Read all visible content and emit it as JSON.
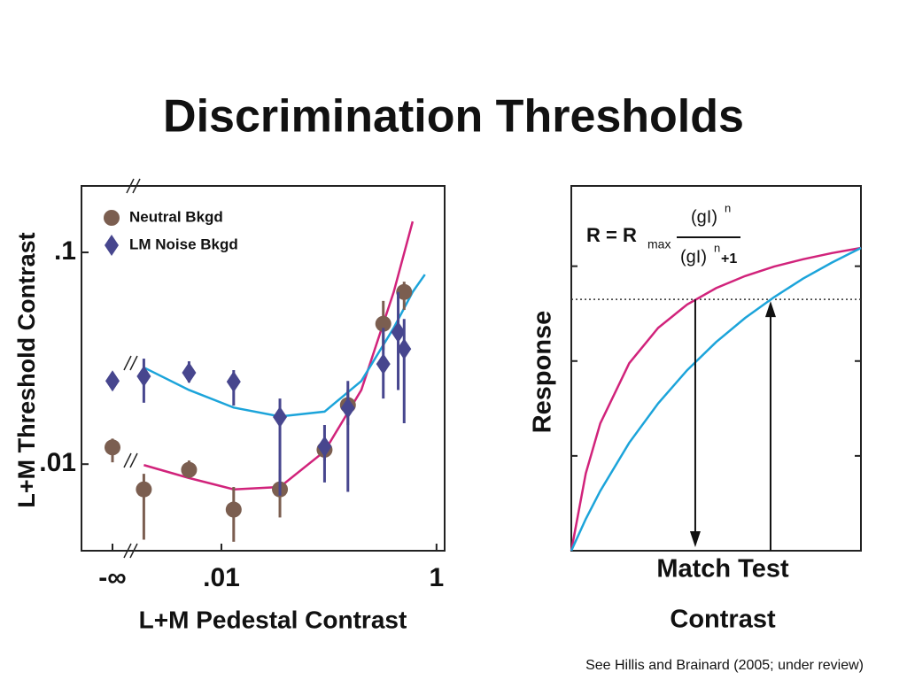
{
  "title": "Discrimination Thresholds",
  "footnote": "See Hillis and Brainard (2005; under review)",
  "chart_data": [
    {
      "type": "scatter",
      "xlabel": "L+M Pedestal Contrast",
      "ylabel": "L+M Threshold Contrast",
      "xscale": "log",
      "yscale": "log",
      "xlim": [
        0.0005,
        1.19
      ],
      "ylim": [
        0.0039,
        0.206
      ],
      "xticks": [
        {
          "value": null,
          "label": "-∞"
        },
        {
          "value": 0.01,
          "label": ".01"
        },
        1
      ],
      "yticks": [
        {
          "value": 0.1,
          "label": ".1"
        },
        {
          "value": 0.01,
          "label": ".01"
        }
      ],
      "legend": "upper left",
      "series": [
        {
          "name": "Neutral Bkgd",
          "color": "#7b5e50",
          "marker": "circle",
          "x": [
            null,
            0.0019,
            0.005,
            0.013,
            0.035,
            0.091,
            0.15,
            0.32,
            0.5
          ],
          "values": [
            0.012,
            0.0076,
            0.0094,
            0.0061,
            0.0076,
            0.0117,
            0.019,
            0.046,
            0.065
          ],
          "low": [
            0.0102,
            0.0044,
            0.0086,
            0.0043,
            0.0056,
            0.0104,
            0.0153,
            0.0346,
            0.0535
          ],
          "high": [
            0.0132,
            0.009,
            0.0104,
            0.0078,
            0.0094,
            0.0132,
            0.0224,
            0.059,
            0.0727
          ]
        },
        {
          "name": "LM Noise Bkgd",
          "color": "#47468e",
          "marker": "diamond",
          "x": [
            null,
            0.0019,
            0.005,
            0.013,
            0.035,
            0.091,
            0.15,
            0.32,
            0.44,
            0.5
          ],
          "values": [
            0.0247,
            0.026,
            0.027,
            0.0245,
            0.0167,
            0.0121,
            0.0184,
            0.0297,
            0.042,
            0.035
          ],
          "low": [
            0.0224,
            0.0195,
            0.0243,
            0.0189,
            0.0071,
            0.0082,
            0.0074,
            0.0204,
            0.0224,
            0.0156
          ],
          "high": [
            0.0272,
            0.0315,
            0.0306,
            0.0278,
            0.0204,
            0.0153,
            0.0247,
            0.044,
            0.065,
            0.0485
          ]
        }
      ],
      "fits": [
        {
          "color": "#d1237b",
          "x": [
            0.0019,
            0.005,
            0.013,
            0.035,
            0.091,
            0.2,
            0.4,
            0.6
          ],
          "values": [
            0.0099,
            0.0086,
            0.0076,
            0.0078,
            0.0115,
            0.0224,
            0.065,
            0.14
          ]
        },
        {
          "color": "#1ca4da",
          "x": [
            0.0019,
            0.005,
            0.013,
            0.035,
            0.091,
            0.2,
            0.4,
            0.6,
            0.78
          ],
          "values": [
            0.0286,
            0.0224,
            0.0185,
            0.0168,
            0.0177,
            0.0247,
            0.044,
            0.065,
            0.0786
          ]
        }
      ]
    },
    {
      "type": "line",
      "ylabel": "Response",
      "xlabel": [
        "Match Test",
        "Contrast"
      ],
      "xlim": [
        0,
        1
      ],
      "ylim": [
        0,
        1
      ],
      "yticks": [
        0.26,
        0.52,
        0.78
      ],
      "x": [
        0,
        0.05,
        0.1,
        0.2,
        0.3,
        0.4,
        0.5,
        0.6,
        0.7,
        0.8,
        0.9,
        1
      ],
      "series": [
        {
          "color": "#d1237b",
          "values": [
            0,
            0.212,
            0.349,
            0.514,
            0.611,
            0.675,
            0.72,
            0.753,
            0.779,
            0.799,
            0.816,
            0.83
          ]
        },
        {
          "color": "#1ca4da",
          "values": [
            0,
            0.087,
            0.164,
            0.296,
            0.404,
            0.495,
            0.572,
            0.638,
            0.695,
            0.746,
            0.79,
            0.83
          ]
        }
      ],
      "match_level": 0.689,
      "arrows": [
        {
          "x": 0.428,
          "direction": "down"
        },
        {
          "x": 0.688,
          "direction": "up"
        }
      ],
      "formula": {
        "lhs": "R = R",
        "sub": "max",
        "num": "(gI)",
        "num_exp": "n",
        "den": "(gI)",
        "den_exp": "n",
        "den_tail": "+1"
      }
    }
  ]
}
